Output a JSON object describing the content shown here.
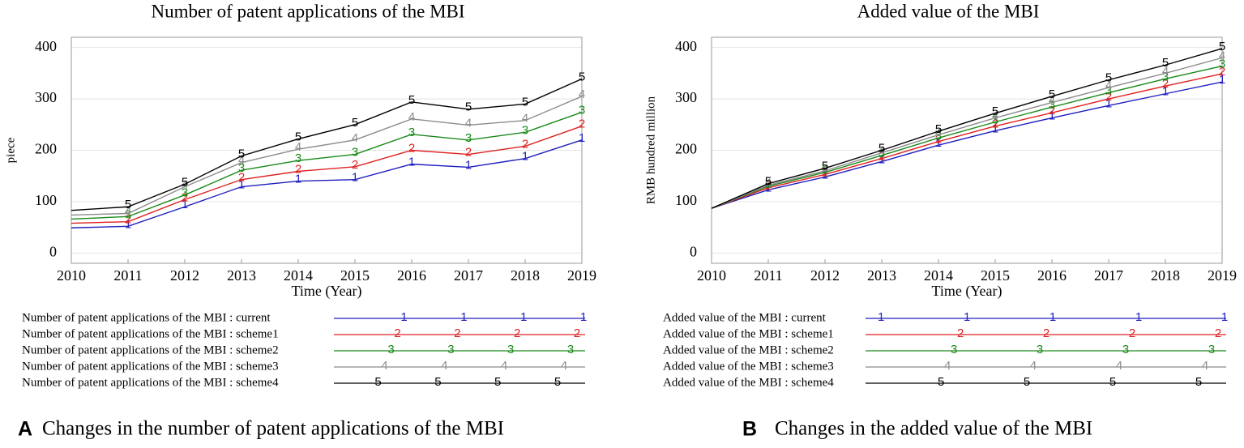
{
  "chart_data": [
    {
      "type": "line",
      "title": "Number of patent applications of the MBI",
      "ylabel": "piece",
      "xlabel": "Time (Year)",
      "panel": "A",
      "caption": "Changes in the number of patent applications of the MBI",
      "x": [
        2010,
        2011,
        2012,
        2013,
        2014,
        2015,
        2016,
        2017,
        2018,
        2019
      ],
      "xlim": [
        2010,
        2019
      ],
      "xticks": [
        2010,
        2011,
        2012,
        2013,
        2014,
        2015,
        2016,
        2017,
        2018,
        2019
      ],
      "ylim": [
        -20,
        420
      ],
      "yticks": [
        0,
        100,
        200,
        300,
        400
      ],
      "grid": true,
      "series": [
        {
          "name": "Number of patent applications of the MBI : current",
          "marker": "1",
          "color": "#1f1fbf",
          "values": [
            49,
            52,
            90,
            129,
            140,
            143,
            173,
            167,
            184,
            220
          ]
        },
        {
          "name": "Number of patent applications of the MBI : scheme1",
          "marker": "2",
          "color": "#e02020",
          "values": [
            58,
            61,
            104,
            143,
            159,
            168,
            200,
            192,
            208,
            247
          ]
        },
        {
          "name": "Number of patent applications of the MBI : scheme2",
          "marker": "3",
          "color": "#1a8a1a",
          "values": [
            66,
            71,
            113,
            161,
            180,
            192,
            231,
            220,
            235,
            274
          ]
        },
        {
          "name": "Number of patent applications of the MBI : scheme3",
          "marker": "4",
          "color": "#8c8c8c",
          "values": [
            74,
            77,
            129,
            176,
            202,
            220,
            261,
            249,
            258,
            305
          ]
        },
        {
          "name": "Number of patent applications of the MBI : scheme4",
          "marker": "5",
          "color": "#000000",
          "values": [
            83,
            90,
            134,
            189,
            222,
            250,
            294,
            280,
            290,
            339
          ]
        }
      ]
    },
    {
      "type": "line",
      "title": "Added value of the MBI",
      "ylabel": "RMB hundred million",
      "xlabel": "Time (Year)",
      "panel": "B",
      "caption": "Changes in the added value of the MBI",
      "x": [
        2010,
        2011,
        2012,
        2013,
        2014,
        2015,
        2016,
        2017,
        2018,
        2019
      ],
      "xlim": [
        2010,
        2019
      ],
      "xticks": [
        2010,
        2011,
        2012,
        2013,
        2014,
        2015,
        2016,
        2017,
        2018,
        2019
      ],
      "ylim": [
        -20,
        420
      ],
      "yticks": [
        0,
        100,
        200,
        300,
        400
      ],
      "grid": true,
      "series": [
        {
          "name": "Added value of the MBI : current",
          "marker": "1",
          "color": "#1f1fbf",
          "values": [
            87,
            123,
            148,
            178,
            210,
            238,
            263,
            287,
            310,
            333
          ]
        },
        {
          "name": "Added value of the MBI : scheme1",
          "marker": "2",
          "color": "#e02020",
          "values": [
            87,
            127,
            153,
            184,
            217,
            247,
            273,
            300,
            325,
            349
          ]
        },
        {
          "name": "Added value of the MBI : scheme2",
          "marker": "3",
          "color": "#1a8a1a",
          "values": [
            87,
            130,
            157,
            190,
            224,
            255,
            284,
            312,
            339,
            364
          ]
        },
        {
          "name": "Added value of the MBI : scheme3",
          "marker": "4",
          "color": "#8c8c8c",
          "values": [
            87,
            132,
            160,
            195,
            230,
            263,
            293,
            322,
            350,
            380
          ]
        },
        {
          "name": "Added value of the MBI : scheme4",
          "marker": "5",
          "color": "#000000",
          "values": [
            87,
            135,
            165,
            200,
            237,
            272,
            305,
            337,
            366,
            398
          ]
        }
      ]
    }
  ]
}
